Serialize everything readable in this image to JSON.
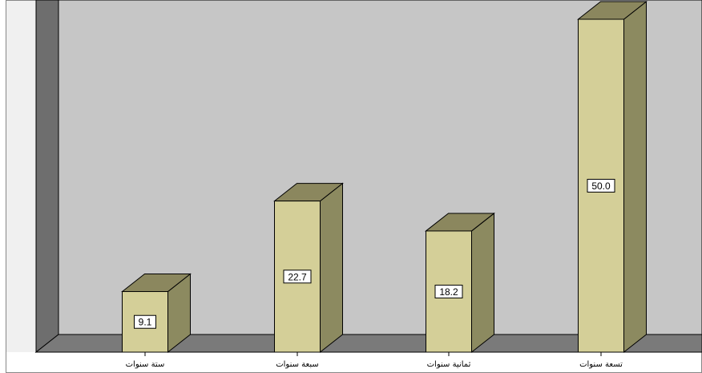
{
  "chart_data": {
    "type": "bar",
    "style": "3d",
    "categories": [
      "ستة سنوات",
      "سبعة سنوات",
      "ثمانية سنوات",
      "تسعة سنوات"
    ],
    "values": [
      9.1,
      22.7,
      18.2,
      50.0
    ],
    "value_labels": [
      "9.1",
      "22.7",
      "18.2",
      "50.0"
    ],
    "title": "",
    "xlabel": "",
    "ylabel": "",
    "ylim": [
      0,
      50
    ],
    "grid": false,
    "legend": "none"
  },
  "colors": {
    "background": "#ffffff",
    "plot_wall": "#c6c6c6",
    "side_wall": "#6e6e6e",
    "floor": "#7a7a7a",
    "left_panel": "#f0f0f0",
    "bar_front": "#d4cf98",
    "bar_top": "#8b875e",
    "bar_side": "#8c8a60",
    "outline": "#000000"
  }
}
